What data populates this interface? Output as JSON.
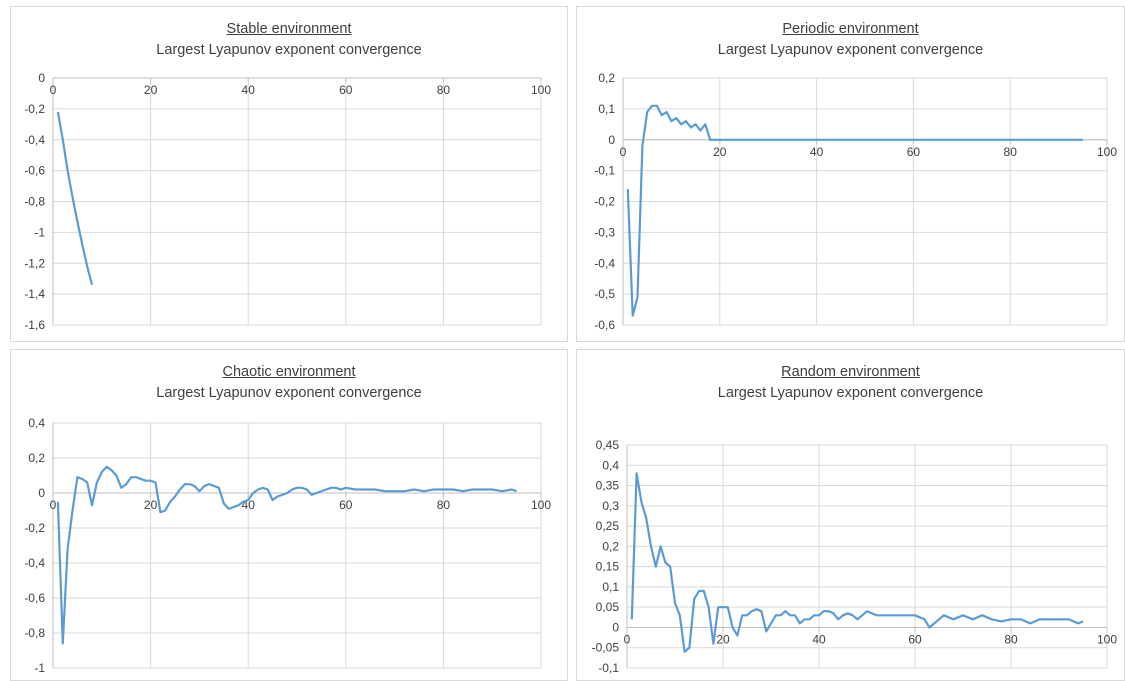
{
  "chart_data": [
    {
      "type": "line",
      "title": "Stable environment",
      "subtitle": "Largest Lyapunov exponent convergence",
      "xlim": [
        0,
        100
      ],
      "ylim": [
        -1.6,
        0
      ],
      "xticks": [
        0,
        20,
        40,
        60,
        80,
        100
      ],
      "xtick_labels": [
        "0",
        "20",
        "40",
        "60",
        "80",
        "100"
      ],
      "yticks": [
        0,
        -0.2,
        -0.4,
        -0.6,
        -0.8,
        -1,
        -1.2,
        -1.4,
        -1.6
      ],
      "ytick_labels": [
        "0",
        "-0,2",
        "-0,4",
        "-0,6",
        "-0,8",
        "-1",
        "-1,2",
        "-1,4",
        "-1,6"
      ],
      "grid": true,
      "line_color": "#5b9bd5",
      "series": [
        {
          "x": [
            1,
            2,
            3,
            4,
            5,
            6,
            7,
            8
          ],
          "y": [
            -0.22,
            -0.4,
            -0.6,
            -0.77,
            -0.93,
            -1.08,
            -1.22,
            -1.34
          ]
        }
      ]
    },
    {
      "type": "line",
      "title": "Periodic environment",
      "subtitle": "Largest Lyapunov exponent convergence",
      "xlim": [
        0,
        100
      ],
      "ylim": [
        -0.6,
        0.2
      ],
      "xticks": [
        0,
        20,
        40,
        60,
        80,
        100
      ],
      "xtick_labels": [
        "0",
        "20",
        "40",
        "60",
        "80",
        "100"
      ],
      "yticks": [
        0.2,
        0.1,
        0,
        -0.1,
        -0.2,
        -0.3,
        -0.4,
        -0.5,
        -0.6
      ],
      "ytick_labels": [
        "0,2",
        "0,1",
        "0",
        "-0,1",
        "-0,2",
        "-0,3",
        "-0,4",
        "-0,5",
        "-0,6"
      ],
      "grid": true,
      "line_color": "#5b9bd5",
      "series": [
        {
          "x": [
            1,
            2,
            3,
            4,
            5,
            6,
            7,
            8,
            9,
            10,
            11,
            12,
            13,
            14,
            15,
            16,
            17,
            18,
            19,
            20,
            30,
            40,
            50,
            60,
            70,
            80,
            90,
            95
          ],
          "y": [
            -0.16,
            -0.57,
            -0.51,
            -0.02,
            0.09,
            0.11,
            0.11,
            0.08,
            0.09,
            0.06,
            0.07,
            0.05,
            0.06,
            0.04,
            0.05,
            0.03,
            0.05,
            0.0,
            0.0,
            0.0,
            0.0,
            0.0,
            0.0,
            0.0,
            0.0,
            0.0,
            0.0,
            0.0
          ]
        }
      ]
    },
    {
      "type": "line",
      "title": "Chaotic environment",
      "subtitle": "Largest Lyapunov exponent convergence",
      "xlim": [
        0,
        100
      ],
      "ylim": [
        -1,
        0.4
      ],
      "xticks": [
        0,
        20,
        40,
        60,
        80,
        100
      ],
      "xtick_labels": [
        "0",
        "20",
        "40",
        "60",
        "80",
        "100"
      ],
      "yticks": [
        0.4,
        0.2,
        0,
        -0.2,
        -0.4,
        -0.6,
        -0.8,
        -1
      ],
      "ytick_labels": [
        "0,4",
        "0,2",
        "0",
        "-0,2",
        "-0,4",
        "-0,6",
        "-0,8",
        "-1"
      ],
      "grid": true,
      "line_color": "#5b9bd5",
      "series": [
        {
          "x": [
            1,
            2,
            3,
            4,
            5,
            6,
            7,
            8,
            9,
            10,
            11,
            12,
            13,
            14,
            15,
            16,
            17,
            18,
            19,
            20,
            21,
            22,
            23,
            24,
            25,
            26,
            27,
            28,
            29,
            30,
            31,
            32,
            33,
            34,
            35,
            36,
            37,
            38,
            39,
            40,
            41,
            42,
            43,
            44,
            45,
            46,
            47,
            48,
            49,
            50,
            51,
            52,
            53,
            54,
            55,
            56,
            57,
            58,
            59,
            60,
            62,
            64,
            66,
            68,
            70,
            72,
            74,
            76,
            78,
            80,
            82,
            84,
            86,
            88,
            90,
            92,
            94,
            95
          ],
          "y": [
            -0.05,
            -0.86,
            -0.32,
            -0.1,
            0.09,
            0.08,
            0.06,
            -0.07,
            0.06,
            0.12,
            0.15,
            0.13,
            0.1,
            0.03,
            0.05,
            0.09,
            0.09,
            0.08,
            0.07,
            0.07,
            0.06,
            -0.11,
            -0.1,
            -0.05,
            -0.02,
            0.02,
            0.05,
            0.05,
            0.04,
            0.01,
            0.04,
            0.05,
            0.04,
            0.03,
            -0.06,
            -0.09,
            -0.08,
            -0.07,
            -0.05,
            -0.04,
            0.0,
            0.02,
            0.03,
            0.02,
            -0.04,
            -0.02,
            -0.01,
            0.0,
            0.02,
            0.03,
            0.03,
            0.02,
            -0.01,
            0.0,
            0.01,
            0.02,
            0.03,
            0.03,
            0.02,
            0.03,
            0.02,
            0.02,
            0.02,
            0.01,
            0.01,
            0.01,
            0.02,
            0.01,
            0.02,
            0.02,
            0.02,
            0.01,
            0.02,
            0.02,
            0.02,
            0.01,
            0.02,
            0.01
          ]
        }
      ]
    },
    {
      "type": "line",
      "title": "Random environment",
      "subtitle": "Largest Lyapunov exponent convergence",
      "xlim": [
        0,
        100
      ],
      "ylim": [
        -0.1,
        0.45
      ],
      "xticks": [
        0,
        20,
        40,
        60,
        80,
        100
      ],
      "xtick_labels": [
        "0",
        "20",
        "40",
        "60",
        "80",
        "100"
      ],
      "yticks": [
        0.45,
        0.4,
        0.35,
        0.3,
        0.25,
        0.2,
        0.15,
        0.1,
        0.05,
        0,
        -0.05,
        -0.1
      ],
      "ytick_labels": [
        "0,45",
        "0,4",
        "0,35",
        "0,3",
        "0,25",
        "0,2",
        "0,15",
        "0,1",
        "0,05",
        "0",
        "-0,05",
        "-0,1"
      ],
      "grid": true,
      "line_color": "#5b9bd5",
      "series": [
        {
          "x": [
            1,
            2,
            3,
            4,
            5,
            6,
            7,
            8,
            9,
            10,
            11,
            12,
            13,
            14,
            15,
            16,
            17,
            18,
            19,
            20,
            21,
            22,
            23,
            24,
            25,
            26,
            27,
            28,
            29,
            30,
            31,
            32,
            33,
            34,
            35,
            36,
            37,
            38,
            39,
            40,
            41,
            42,
            43,
            44,
            45,
            46,
            47,
            48,
            49,
            50,
            52,
            54,
            56,
            58,
            60,
            62,
            63,
            64,
            66,
            68,
            70,
            72,
            74,
            76,
            78,
            80,
            82,
            84,
            86,
            88,
            90,
            92,
            94,
            95
          ],
          "y": [
            0.02,
            0.38,
            0.31,
            0.27,
            0.2,
            0.15,
            0.2,
            0.16,
            0.15,
            0.06,
            0.03,
            -0.06,
            -0.05,
            0.07,
            0.09,
            0.09,
            0.05,
            -0.04,
            0.05,
            0.05,
            0.05,
            0.0,
            -0.02,
            0.03,
            0.03,
            0.04,
            0.045,
            0.04,
            -0.01,
            0.01,
            0.03,
            0.03,
            0.04,
            0.03,
            0.03,
            0.01,
            0.02,
            0.02,
            0.03,
            0.03,
            0.04,
            0.04,
            0.035,
            0.02,
            0.03,
            0.035,
            0.03,
            0.02,
            0.03,
            0.04,
            0.03,
            0.03,
            0.03,
            0.03,
            0.03,
            0.02,
            0.0,
            0.01,
            0.03,
            0.02,
            0.03,
            0.02,
            0.03,
            0.02,
            0.015,
            0.02,
            0.02,
            0.01,
            0.02,
            0.02,
            0.02,
            0.02,
            0.01,
            0.015
          ]
        }
      ]
    }
  ]
}
